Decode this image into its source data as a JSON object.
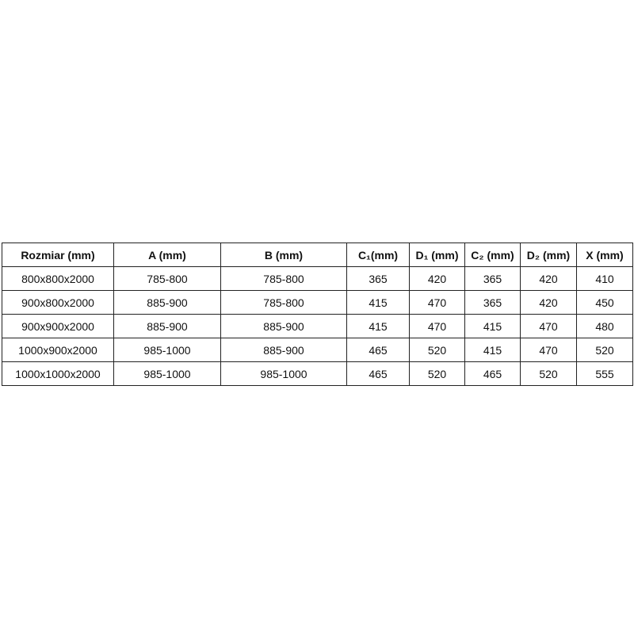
{
  "table": {
    "headers": [
      "Rozmiar (mm)",
      "A (mm)",
      "B (mm)",
      "C₁(mm)",
      "D₁ (mm)",
      "C₂ (mm)",
      "D₂ (mm)",
      "X (mm)"
    ],
    "rows": [
      [
        "800x800x2000",
        "785-800",
        "785-800",
        "365",
        "420",
        "365",
        "420",
        "410"
      ],
      [
        "900x800x2000",
        "885-900",
        "785-800",
        "415",
        "470",
        "365",
        "420",
        "450"
      ],
      [
        "900x900x2000",
        "885-900",
        "885-900",
        "415",
        "470",
        "415",
        "470",
        "480"
      ],
      [
        "1000x900x2000",
        "985-1000",
        "885-900",
        "465",
        "520",
        "415",
        "470",
        "520"
      ],
      [
        "1000x1000x2000",
        "985-1000",
        "985-1000",
        "465",
        "520",
        "465",
        "520",
        "555"
      ]
    ]
  }
}
